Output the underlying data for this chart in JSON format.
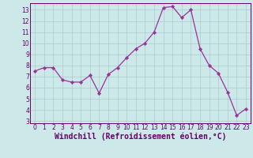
{
  "x": [
    0,
    1,
    2,
    3,
    4,
    5,
    6,
    7,
    8,
    9,
    10,
    11,
    12,
    13,
    14,
    15,
    16,
    17,
    18,
    19,
    20,
    21,
    22,
    23
  ],
  "y": [
    7.5,
    7.8,
    7.8,
    6.7,
    6.5,
    6.5,
    7.1,
    5.5,
    7.2,
    7.8,
    8.7,
    9.5,
    10.0,
    11.0,
    13.2,
    13.3,
    12.3,
    13.0,
    9.5,
    8.0,
    7.3,
    5.6,
    3.5,
    4.1
  ],
  "line_color": "#993399",
  "marker_color": "#993399",
  "bg_color": "#cce8e8",
  "grid_color": "#aacccc",
  "xlabel": "Windchill (Refroidissement éolien,°C)",
  "ylim": [
    2.8,
    13.6
  ],
  "xlim": [
    -0.5,
    23.5
  ],
  "yticks": [
    3,
    4,
    5,
    6,
    7,
    8,
    9,
    10,
    11,
    12,
    13
  ],
  "xticks": [
    0,
    1,
    2,
    3,
    4,
    5,
    6,
    7,
    8,
    9,
    10,
    11,
    12,
    13,
    14,
    15,
    16,
    17,
    18,
    19,
    20,
    21,
    22,
    23
  ],
  "axis_color": "#660066",
  "tick_color": "#660066",
  "label_fontsize": 7.0,
  "tick_fontsize": 5.5
}
